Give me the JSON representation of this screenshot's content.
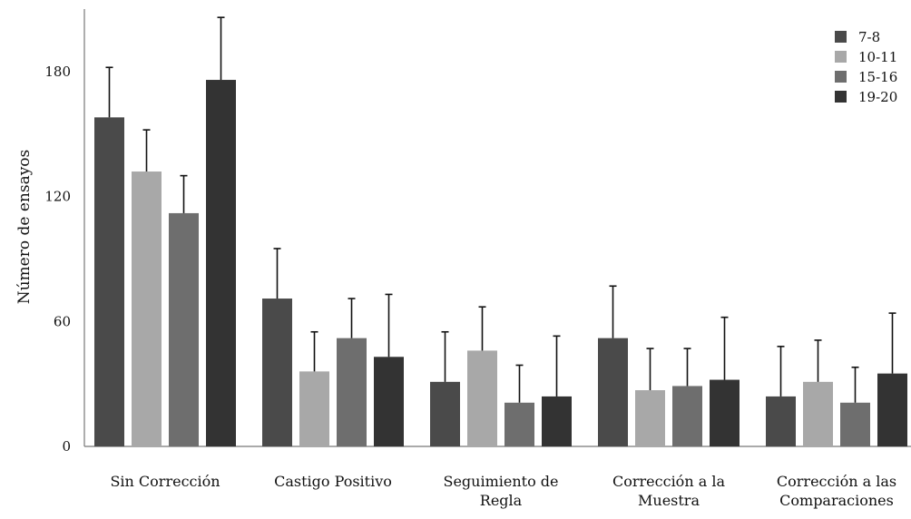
{
  "chart_data": {
    "type": "bar",
    "title": "",
    "xlabel": "",
    "ylabel": "Número de ensayos",
    "ylim": [
      0,
      210
    ],
    "yticks": [
      "0",
      "60",
      "120",
      "180"
    ],
    "grid": false,
    "legend_position": "top-right",
    "categories": [
      [
        "Sin Corrección"
      ],
      [
        "Castigo Positivo"
      ],
      [
        "Seguimiento de",
        "Regla"
      ],
      [
        "Corrección a la",
        "Muestra"
      ],
      [
        "Corrección a las",
        "Comparaciones"
      ]
    ],
    "series": [
      {
        "name": "7-8",
        "color": "#4a4a4a",
        "values": [
          158,
          71,
          31,
          52,
          24
        ],
        "error": [
          24,
          24,
          24,
          25,
          24
        ]
      },
      {
        "name": "10-11",
        "color": "#a8a8a8",
        "values": [
          132,
          36,
          46,
          27,
          31
        ],
        "error": [
          20,
          19,
          21,
          20,
          20
        ]
      },
      {
        "name": "15-16",
        "color": "#6e6e6e",
        "values": [
          112,
          52,
          21,
          29,
          21
        ],
        "error": [
          18,
          19,
          18,
          18,
          17
        ]
      },
      {
        "name": "19-20",
        "color": "#333333",
        "values": [
          176,
          43,
          24,
          32,
          35
        ],
        "error": [
          30,
          30,
          29,
          30,
          29
        ]
      }
    ]
  }
}
